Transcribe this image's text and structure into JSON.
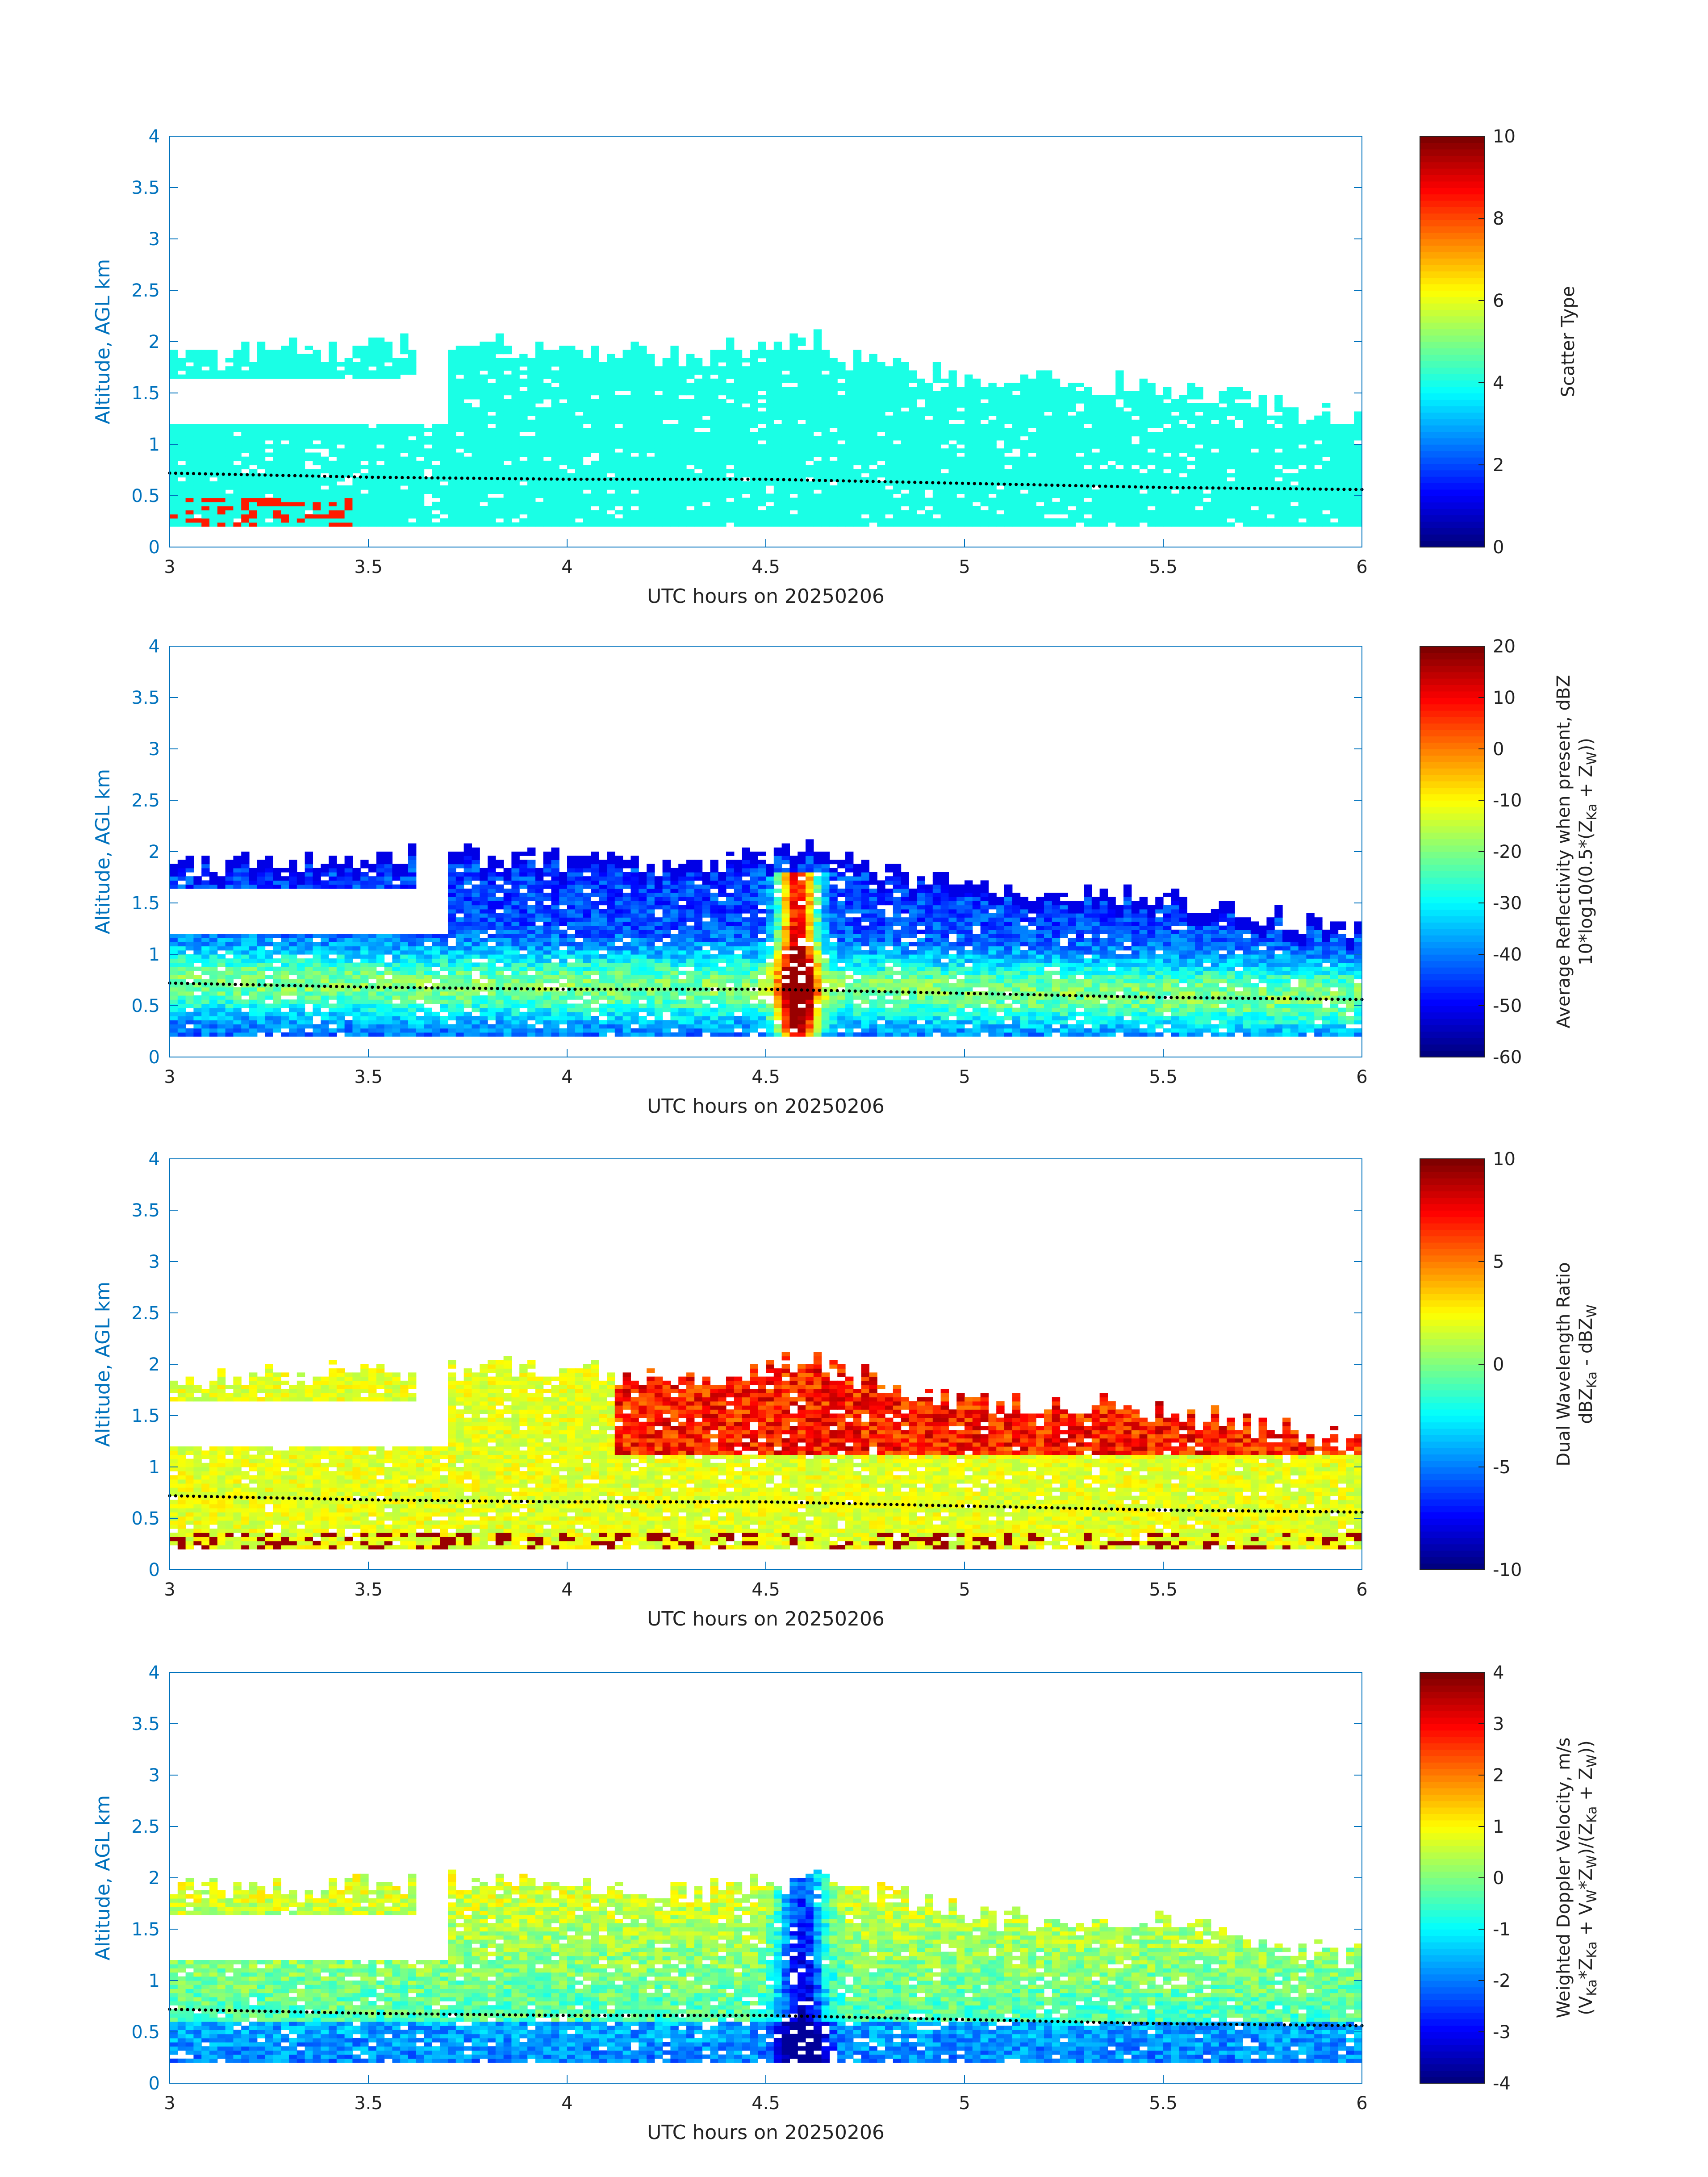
{
  "chart_data": [
    {
      "type": "heatmap",
      "xlabel": "UTC hours on 20250206",
      "ylabel": "Altitude, AGL km",
      "xlim": [
        3,
        6
      ],
      "ylim": [
        0,
        4
      ],
      "xticks": [
        "3",
        "3.5",
        "4",
        "4.5",
        "5",
        "5.5",
        "6"
      ],
      "yticks": [
        "0",
        "0.5",
        "1",
        "1.5",
        "2",
        "2.5",
        "3",
        "3.5",
        "4"
      ],
      "colorbar": {
        "label_line1": "Scatter Type",
        "label_line2": "",
        "range": [
          0,
          10
        ],
        "ticks": [
          "0",
          "2",
          "4",
          "6",
          "8",
          "10"
        ],
        "colormap": "jet"
      },
      "dominant_value": 4,
      "secondary_value": 8.5,
      "cloud_top_km_by_hour": [
        [
          3.0,
          1.85
        ],
        [
          3.7,
          1.95
        ],
        [
          4.3,
          1.85
        ],
        [
          4.6,
          2.0
        ],
        [
          5.0,
          1.6
        ],
        [
          5.5,
          1.55
        ],
        [
          6.0,
          1.2
        ]
      ],
      "dotted_line": {
        "x": [
          3.0,
          3.5,
          4.0,
          4.5,
          5.0,
          5.5,
          6.0
        ],
        "y": [
          0.72,
          0.68,
          0.66,
          0.66,
          0.62,
          0.58,
          0.56
        ]
      }
    },
    {
      "type": "heatmap",
      "xlabel": "UTC hours on 20250206",
      "ylabel": "Altitude, AGL km",
      "xlim": [
        3,
        6
      ],
      "ylim": [
        0,
        4
      ],
      "xticks": [
        "3",
        "3.5",
        "4",
        "4.5",
        "5",
        "5.5",
        "6"
      ],
      "yticks": [
        "0",
        "0.5",
        "1",
        "1.5",
        "2",
        "2.5",
        "3",
        "3.5",
        "4"
      ],
      "colorbar": {
        "label_line1": "Average Reflectivity when present, dBZ",
        "label_line2": "10*log10(0.5*(Z",
        "sub_ka": "Ka",
        "plus_z": " + Z",
        "sub_w": "W",
        "close": "))",
        "range": [
          -60,
          20
        ],
        "ticks": [
          "-60",
          "-50",
          "-40",
          "-30",
          "-20",
          "-10",
          "0",
          "10",
          "20"
        ],
        "colormap": "jet"
      },
      "value_range": [
        -55,
        18
      ],
      "dotted_line": {
        "x": [
          3.0,
          3.5,
          4.0,
          4.5,
          5.0,
          5.5,
          6.0
        ],
        "y": [
          0.72,
          0.68,
          0.66,
          0.66,
          0.62,
          0.58,
          0.56
        ]
      }
    },
    {
      "type": "heatmap",
      "xlabel": "UTC hours on 20250206",
      "ylabel": "Altitude, AGL km",
      "xlim": [
        3,
        6
      ],
      "ylim": [
        0,
        4
      ],
      "xticks": [
        "3",
        "3.5",
        "4",
        "4.5",
        "5",
        "5.5",
        "6"
      ],
      "yticks": [
        "0",
        "0.5",
        "1",
        "1.5",
        "2",
        "2.5",
        "3",
        "3.5",
        "4"
      ],
      "colorbar": {
        "label_line1": "Dual Wavelength Ratio",
        "label_line2": "dBZ",
        "sub_ka": "Ka",
        "minus": " - dBZ",
        "sub_w": "W",
        "range": [
          -10,
          10
        ],
        "ticks": [
          "-10",
          "-5",
          "0",
          "5",
          "10"
        ],
        "colormap": "jet"
      },
      "value_range": [
        -2,
        10
      ],
      "dotted_line": {
        "x": [
          3.0,
          3.5,
          4.0,
          4.5,
          5.0,
          5.5,
          6.0
        ],
        "y": [
          0.72,
          0.68,
          0.66,
          0.66,
          0.62,
          0.58,
          0.56
        ]
      }
    },
    {
      "type": "heatmap",
      "xlabel": "UTC hours on 20250206",
      "ylabel": "Altitude, AGL km",
      "xlim": [
        3,
        6
      ],
      "ylim": [
        0,
        4
      ],
      "xticks": [
        "3",
        "3.5",
        "4",
        "4.5",
        "5",
        "5.5",
        "6"
      ],
      "yticks": [
        "0",
        "0.5",
        "1",
        "1.5",
        "2",
        "2.5",
        "3",
        "3.5",
        "4"
      ],
      "colorbar": {
        "label_line1": "Weighted Doppler Velocity, m/s",
        "label_line2": "(V",
        "sub_ka": "Ka",
        "mid1": "*Z",
        "mid2": " + V",
        "sub_w": "W",
        "mid3": "*Z",
        "mid4": ")/(Z",
        "mid5": " + Z",
        "close": "))",
        "range": [
          -4,
          4
        ],
        "ticks": [
          "-4",
          "-3",
          "-2",
          "-1",
          "0",
          "1",
          "2",
          "3",
          "4"
        ],
        "colormap": "jet"
      },
      "value_range": [
        -3.8,
        1.2
      ],
      "dotted_line": {
        "x": [
          3.0,
          3.5,
          4.0,
          4.5,
          5.0,
          5.5,
          6.0
        ],
        "y": [
          0.72,
          0.68,
          0.66,
          0.66,
          0.62,
          0.58,
          0.56
        ]
      }
    }
  ]
}
